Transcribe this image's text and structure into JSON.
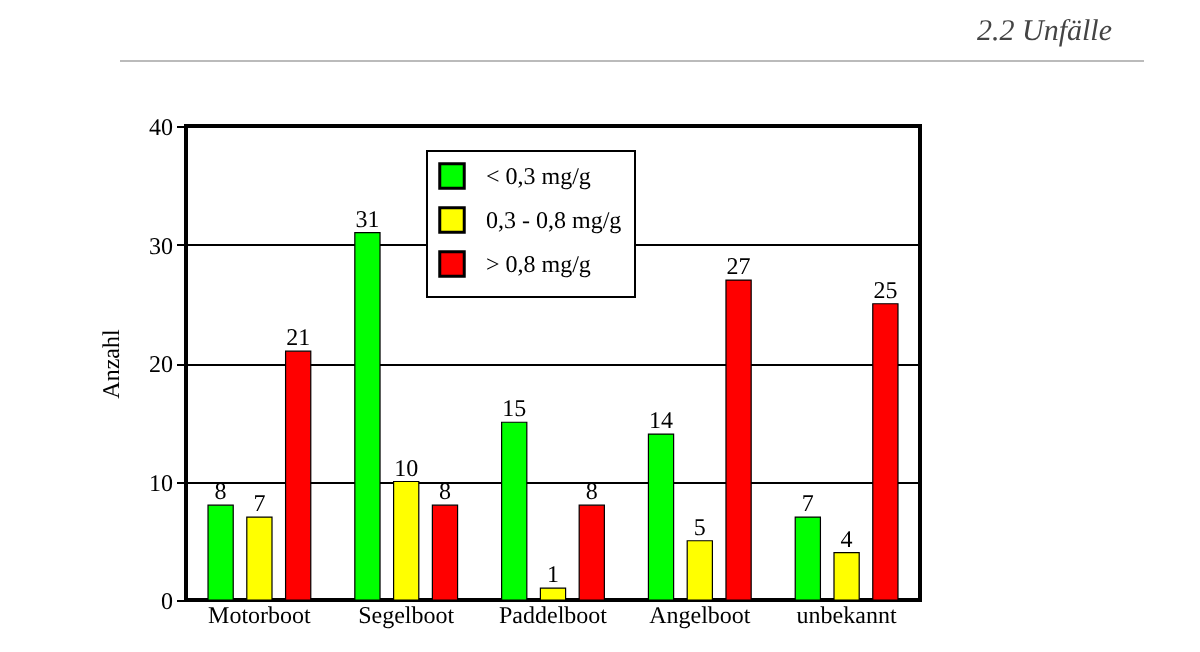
{
  "chart_data": {
    "type": "bar",
    "annotations": [
      "2.2 Unfälle"
    ],
    "ylabel": "Anzahl",
    "categories": [
      "Motorboot",
      "Segelboot",
      "Paddelboot",
      "Angelboot",
      "unbekannt"
    ],
    "series": [
      {
        "name": "< 0,3 mg/g",
        "color": "#00ff00",
        "values": [
          8,
          31,
          15,
          14,
          7
        ]
      },
      {
        "name": "0,3 - 0,8 mg/g",
        "color": "#ffff00",
        "values": [
          7,
          10,
          1,
          5,
          4
        ]
      },
      {
        "name": "> 0,8 mg/g",
        "color": "#ff0000",
        "values": [
          21,
          8,
          8,
          27,
          25
        ]
      }
    ],
    "ylim": [
      0,
      40
    ],
    "yticks": [
      0,
      10,
      20,
      30,
      40
    ],
    "grid": "y",
    "legend": "top",
    "data_labels": true
  }
}
